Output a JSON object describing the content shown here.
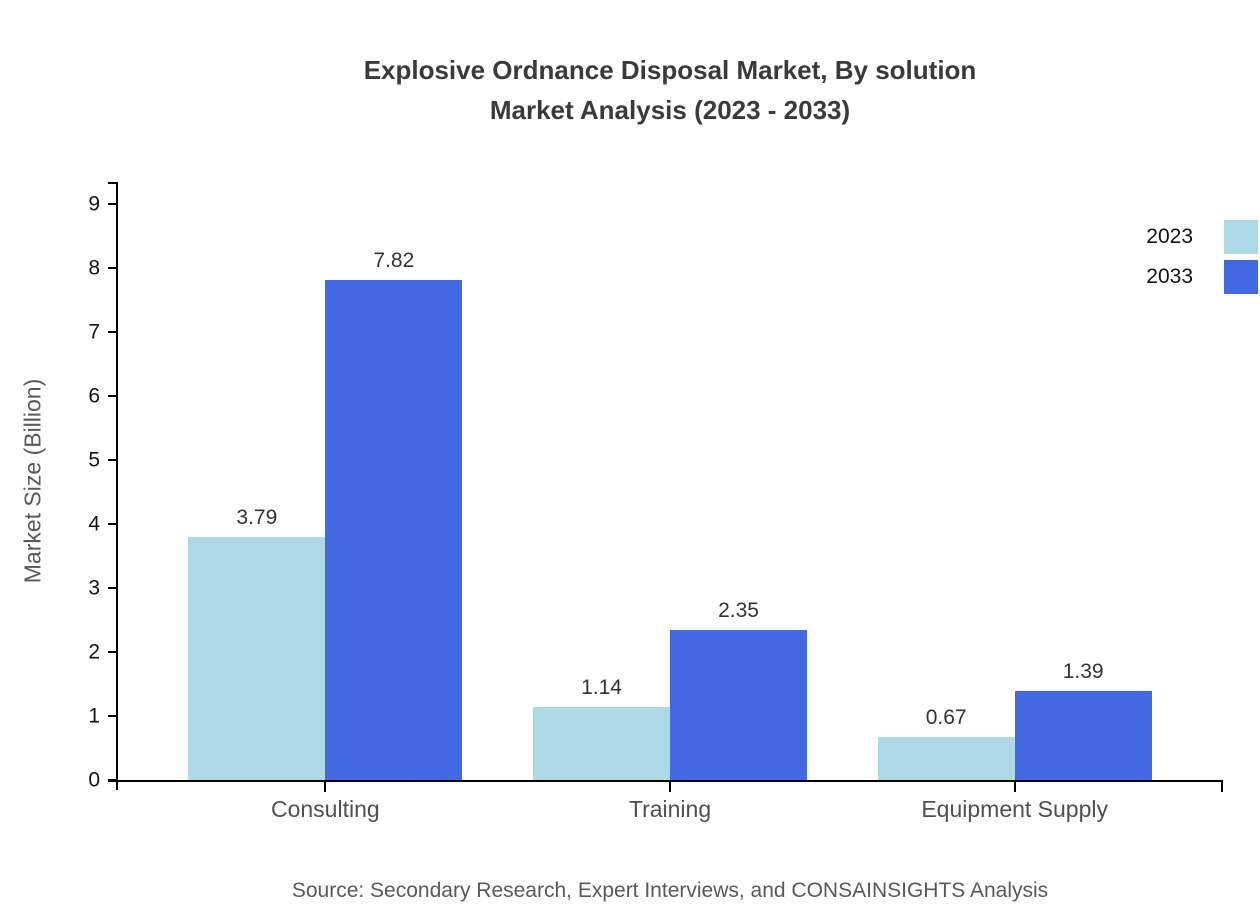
{
  "title": {
    "line1": "Explosive Ordnance Disposal Market, By solution",
    "line2": "Market Analysis (2023 - 2033)"
  },
  "source": "Source: Secondary Research, Expert Interviews, and CONSAINSIGHTS Analysis",
  "chart_data": {
    "type": "bar",
    "title": "Explosive Ordnance Disposal Market, By solution Market Analysis (2023 - 2033)",
    "categories": [
      "Consulting",
      "Training",
      "Equipment Supply"
    ],
    "series": [
      {
        "name": "2023",
        "color": "#ADD8E6",
        "values": [
          3.79,
          1.14,
          0.67
        ]
      },
      {
        "name": "2033",
        "color": "#4169E1",
        "values": [
          7.82,
          2.35,
          1.39
        ]
      }
    ],
    "xlabel": "",
    "ylabel": "Market Size (Billion)",
    "ylim": [
      0,
      9
    ],
    "ytick_step": 1,
    "grid": false,
    "legend_position": "top-right",
    "value_labels": true,
    "axis_color": "#000000"
  }
}
